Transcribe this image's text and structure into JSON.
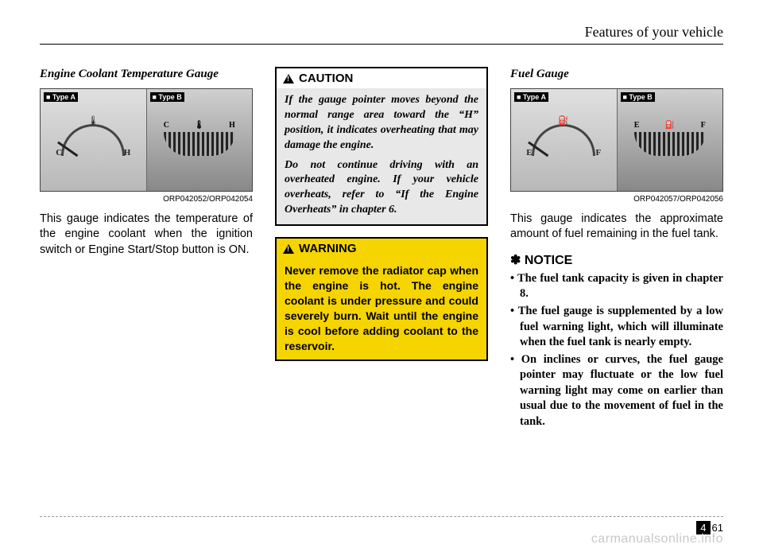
{
  "header": "Features of your vehicle",
  "col1": {
    "subhead": "Engine Coolant Temperature Gauge",
    "gauge": {
      "typeA": "■ Type A",
      "typeB": "■ Type B",
      "left_letter": "C",
      "right_letter": "H",
      "ref": "ORP042052/ORP042054"
    },
    "text": "This gauge indicates the tempera­ture of the engine coolant when the ignition switch or Engine Start/Stop button is ON."
  },
  "col2": {
    "caution": {
      "title": "CAUTION",
      "p1": "If the gauge pointer moves beyond the normal range area toward the “H” position, it indi­cates overheating that may damage the engine.",
      "p2": "Do not continue driving with an overheated engine. If your vehi­cle overheats, refer to “If the Engine Overheats” in chapter 6."
    },
    "warning": {
      "title": "WARNING",
      "body": "Never remove the radiator cap when the engine is hot. The engine coolant is under pressure and could severely burn. Wait until the engine is cool before adding coolant to the reservoir."
    }
  },
  "col3": {
    "subhead": "Fuel Gauge",
    "gauge": {
      "typeA": "■ Type A",
      "typeB": "■ Type B",
      "left_letter": "E",
      "right_letter": "F",
      "ref": "ORP042057/ORP042056"
    },
    "text": "This gauge indicates the approxi­mate amount of fuel remaining in the fuel tank.",
    "notice_head": "✽ NOTICE",
    "notice": [
      "The fuel tank capacity is given in chapter 8.",
      "The fuel gauge is supplemented by a low fuel warning light, which will illuminate when the fuel tank is nearly empty.",
      "On inclines or curves, the fuel gauge pointer may fluctuate or the low fuel warning light may come on earlier than usual due to the movement of fuel in the tank."
    ]
  },
  "footer": {
    "section": "4",
    "page": "61"
  },
  "watermark": "carmanualsonline.info"
}
